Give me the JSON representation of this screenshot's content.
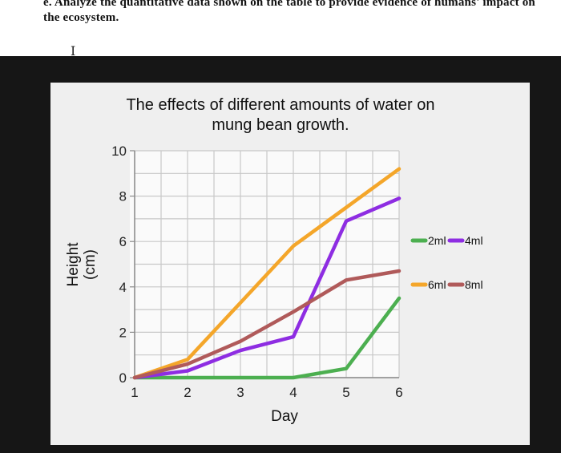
{
  "question": {
    "line1": "e. Analyze the quantitative data shown on the table to provide evidence of humans' impact on",
    "line2": "the ecosystem."
  },
  "chart_data": {
    "type": "line",
    "title_line1": "The effects of different amounts of water on",
    "title_line2": "mung bean growth.",
    "xlabel": "Day",
    "ylabel_line1": "Height",
    "ylabel_line2": "(cm)",
    "x": [
      1,
      2,
      3,
      4,
      5,
      6
    ],
    "xlim": [
      1,
      6
    ],
    "ylim": [
      0,
      10
    ],
    "x_ticks": [
      "1",
      "2",
      "3",
      "4",
      "5",
      "6"
    ],
    "y_ticks": [
      "0",
      "2",
      "4",
      "6",
      "8",
      "10"
    ],
    "grid": true,
    "legend_position": "right",
    "series": [
      {
        "name": "2ml",
        "color": "#4caf50",
        "values": [
          0,
          0,
          0,
          0,
          0.4,
          3.5
        ]
      },
      {
        "name": "4ml",
        "color": "#8e2de2",
        "values": [
          0,
          0.3,
          1.2,
          1.8,
          6.9,
          7.9
        ]
      },
      {
        "name": "6ml",
        "color": "#f4a62a",
        "values": [
          0,
          0.8,
          3.3,
          5.8,
          7.5,
          9.2
        ]
      },
      {
        "name": "8ml",
        "color": "#b05a5a",
        "values": [
          0,
          0.6,
          1.6,
          2.9,
          4.3,
          4.7
        ]
      }
    ]
  }
}
